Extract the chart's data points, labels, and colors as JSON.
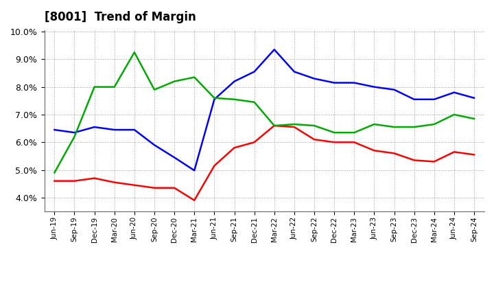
{
  "title": "[8001]  Trend of Margin",
  "x_labels": [
    "Jun-19",
    "Sep-19",
    "Dec-19",
    "Mar-20",
    "Jun-20",
    "Sep-20",
    "Dec-20",
    "Mar-21",
    "Jun-21",
    "Sep-21",
    "Dec-21",
    "Mar-22",
    "Jun-22",
    "Sep-22",
    "Dec-22",
    "Mar-23",
    "Jun-23",
    "Sep-23",
    "Dec-23",
    "Mar-24",
    "Jun-24",
    "Sep-24"
  ],
  "ordinary_income": [
    6.45,
    6.35,
    6.55,
    6.45,
    6.45,
    5.9,
    5.45,
    4.98,
    7.55,
    8.2,
    8.55,
    9.35,
    8.55,
    8.3,
    8.15,
    8.15,
    8.0,
    7.9,
    7.55,
    7.55,
    7.8,
    7.6
  ],
  "net_income": [
    4.6,
    4.6,
    4.7,
    4.55,
    4.45,
    4.35,
    4.35,
    3.9,
    5.15,
    5.8,
    6.0,
    6.6,
    6.55,
    6.1,
    6.0,
    6.0,
    5.7,
    5.6,
    5.35,
    5.3,
    5.65,
    5.55
  ],
  "operating_cashflow": [
    4.9,
    6.2,
    8.0,
    8.0,
    9.25,
    7.9,
    8.2,
    8.35,
    7.6,
    7.55,
    7.45,
    6.6,
    6.65,
    6.6,
    6.35,
    6.35,
    6.65,
    6.55,
    6.55,
    6.65,
    7.0,
    6.85
  ],
  "ylim": [
    3.5,
    10.05
  ],
  "yticks": [
    4.0,
    5.0,
    6.0,
    7.0,
    8.0,
    9.0,
    10.0
  ],
  "line_colors": {
    "ordinary_income": "#0000ff",
    "net_income": "#ff0000",
    "operating_cashflow": "#00aa00"
  },
  "line_width": 1.8,
  "background_color": "#ffffff",
  "grid_color": "#999999"
}
